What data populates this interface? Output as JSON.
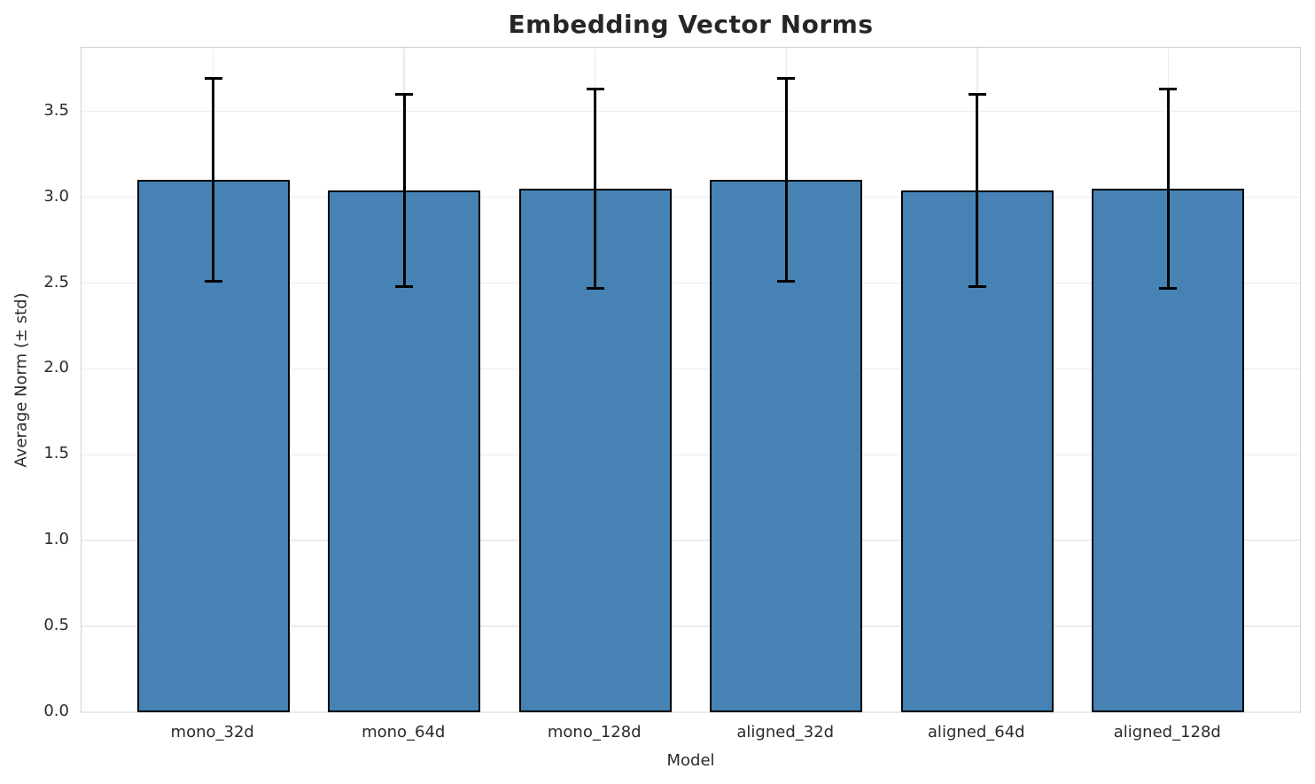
{
  "title": "Embedding Vector Norms",
  "colors": {
    "bar_fill": "#4682b4",
    "bar_edge": "#000000",
    "error_bar": "#000000",
    "grid": "#ebebeb",
    "spine": "#d0d0d0",
    "title_text": "#262626",
    "tick_text": "#2b2b2b"
  },
  "chart_data": {
    "type": "bar",
    "title": "Embedding Vector Norms",
    "xlabel": "Model",
    "ylabel": "Average Norm (± std)",
    "categories": [
      "mono_32d",
      "mono_64d",
      "mono_128d",
      "aligned_32d",
      "aligned_64d",
      "aligned_128d"
    ],
    "values": [
      3.1,
      3.04,
      3.05,
      3.1,
      3.04,
      3.05
    ],
    "errors": [
      0.59,
      0.56,
      0.58,
      0.59,
      0.56,
      0.58
    ],
    "yticks": [
      0.0,
      0.5,
      1.0,
      1.5,
      2.0,
      2.5,
      3.0,
      3.5
    ],
    "ytick_labels": [
      "0.0",
      "0.5",
      "1.0",
      "1.5",
      "2.0",
      "2.5",
      "3.0",
      "3.5"
    ],
    "ylim": [
      0,
      3.87
    ],
    "xlim": [
      -0.69,
      5.69
    ],
    "bar_width": 0.8,
    "grid": true,
    "legend_position": "none",
    "error_caps": true
  }
}
